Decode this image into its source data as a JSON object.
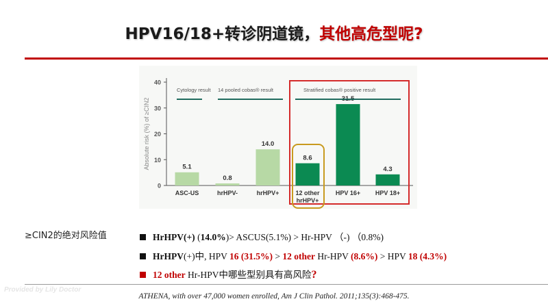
{
  "title": {
    "part1": "HPV16/18+转诊阴道镜，",
    "part2": "其他高危型呢?"
  },
  "chart_data": {
    "type": "bar",
    "ylabel": "Absolute risk (%) of ≥CIN2",
    "ylim": [
      0,
      40
    ],
    "yticks": [
      0,
      10,
      20,
      30,
      40
    ],
    "categories": [
      "ASC-US",
      "hrHPV-",
      "hrHPV+",
      "12 other hrHPV+",
      "HPV 16+",
      "HPV 18+"
    ],
    "category_lines": [
      [
        "ASC-US"
      ],
      [
        "hrHPV-"
      ],
      [
        "hrHPV+"
      ],
      [
        "12 other",
        "hrHPV+"
      ],
      [
        "HPV 16+"
      ],
      [
        "HPV 18+"
      ]
    ],
    "values": [
      5.1,
      0.8,
      14.0,
      8.6,
      31.5,
      4.3
    ],
    "value_labels": [
      "5.1",
      "0.8",
      "14.0",
      "8.6",
      "31.5",
      "4.3"
    ],
    "bar_colors": [
      "#b7d9a5",
      "#b7d9a5",
      "#b7d9a5",
      "#0b8a52",
      "#0b8a52",
      "#0b8a52"
    ],
    "group_headers": [
      {
        "label": "Cytology result"
      },
      {
        "label": "14 pooled cobas® result"
      },
      {
        "label": "Stratified cobas® positive result"
      }
    ],
    "header_line_color": "#1f6b5e",
    "highlight_box_color": "#d42a2a",
    "highlight_rounded_color": "#c89a1e"
  },
  "side_label": "≥CIN2的绝对风险值",
  "bullets": {
    "b1": {
      "t1": "HrHPV(+)",
      "t2": " (",
      "t3": "14.0%",
      "t4": ")> ASCUS(5.1%) > Hr-HPV （-) （0.8%)"
    },
    "b2": {
      "t1": "HrHPV",
      "t2": "(+)中, HPV ",
      "t3": "16 (31.5%)",
      "t4": " > ",
      "t5": "12 other",
      "t6": " Hr-HPV ",
      "t7": "(8.6%)",
      "t8": " > HPV ",
      "t9": "18 (4.3%)"
    },
    "b3": {
      "t1": "12 other",
      "t2": " Hr-HPV中哪些型别具有高风险",
      "t3": "?"
    }
  },
  "citation": "ATHENA, with over 47,000 women enrolled, Am J Clin Pathol. 2011;135(3):468-475.",
  "watermark": "Provided by Lily Doctor",
  "colors": {
    "accent": "#c00000",
    "bar_dark": "#0b8a52",
    "bar_light": "#b7d9a5"
  }
}
